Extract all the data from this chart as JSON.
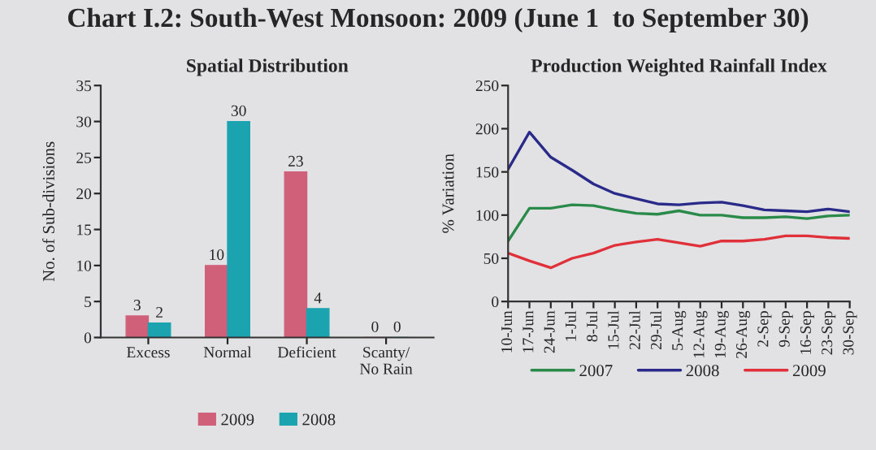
{
  "chart_data": [
    {
      "type": "bar",
      "title": "Spatial Distribution",
      "ylabel": "No. of Sub-divisions",
      "annotations": [
        "Chart I.2: South-West Monsoon: 2009 (June 1  to September 30)"
      ],
      "categories": [
        "Excess",
        "Normal",
        "Deficient",
        "Scanty/\nNo Rain"
      ],
      "series": [
        {
          "name": "2009",
          "color": "#d0607a",
          "values": [
            3,
            10,
            23,
            0
          ]
        },
        {
          "name": "2008",
          "color": "#1ba3b0",
          "values": [
            2,
            30,
            4,
            0
          ]
        }
      ],
      "ylim": [
        0,
        35
      ],
      "yticks": [
        0,
        5,
        10,
        15,
        20,
        25,
        30,
        35
      ],
      "data_labels": true,
      "legend": "bottom",
      "grid": false
    },
    {
      "type": "line",
      "title": "Production Weighted Rainfall Index",
      "ylabel": "% Variation",
      "categories": [
        "10-Jun",
        "17-Jun",
        "24-Jun",
        "1-Jul",
        "8-Jul",
        "15-Jul",
        "22-Jul",
        "29-Jul",
        "5-Aug",
        "12-Aug",
        "19-Aug",
        "26-Aug",
        "2-Sep",
        "9-Sep",
        "16-Sep",
        "23-Sep",
        "30-Sep"
      ],
      "series": [
        {
          "name": "2007",
          "color": "#2a8a4a",
          "values": [
            70,
            108,
            108,
            112,
            111,
            106,
            102,
            101,
            105,
            100,
            100,
            97,
            97,
            98,
            96,
            99,
            100
          ]
        },
        {
          "name": "2008",
          "color": "#2a2a8a",
          "values": [
            153,
            196,
            167,
            152,
            136,
            125,
            119,
            113,
            112,
            114,
            115,
            111,
            106,
            105,
            104,
            107,
            104
          ]
        },
        {
          "name": "2009",
          "color": "#e0303a",
          "values": [
            56,
            47,
            39,
            50,
            56,
            65,
            69,
            72,
            68,
            64,
            70,
            70,
            72,
            76,
            76,
            74,
            73
          ]
        }
      ],
      "ylim": [
        0,
        250
      ],
      "yticks": [
        0,
        50,
        100,
        150,
        200,
        250
      ],
      "legend": "bottom",
      "grid": false,
      "marker": "none",
      "line_style": "solid"
    }
  ]
}
